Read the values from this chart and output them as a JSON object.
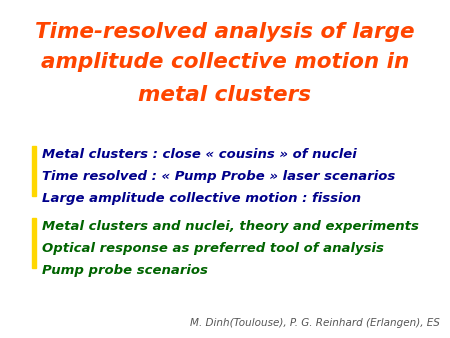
{
  "title_lines": [
    "Time-resolved analysis of large",
    "amplitude collective motion in",
    "metal clusters"
  ],
  "title_color": "#FF4500",
  "title_fontsize": 15.5,
  "blue_lines": [
    "Metal clusters : close « cousins » of nuclei",
    "Time resolved : « Pump Probe » laser scenarios",
    "Large amplitude collective motion : fission"
  ],
  "blue_color": "#00008B",
  "green_lines": [
    "Metal clusters and nuclei, theory and experiments",
    "Optical response as preferred tool of analysis",
    "Pump probe scenarios"
  ],
  "green_color": "#006400",
  "bar_color": "#FFD700",
  "footer": "M. Dinh(Toulouse), P. G. Reinhard (Erlangen), ES",
  "footer_color": "#555555",
  "background_color": "#FFFFFF",
  "fontsize_body": 9.5,
  "fontsize_footer": 7.5
}
